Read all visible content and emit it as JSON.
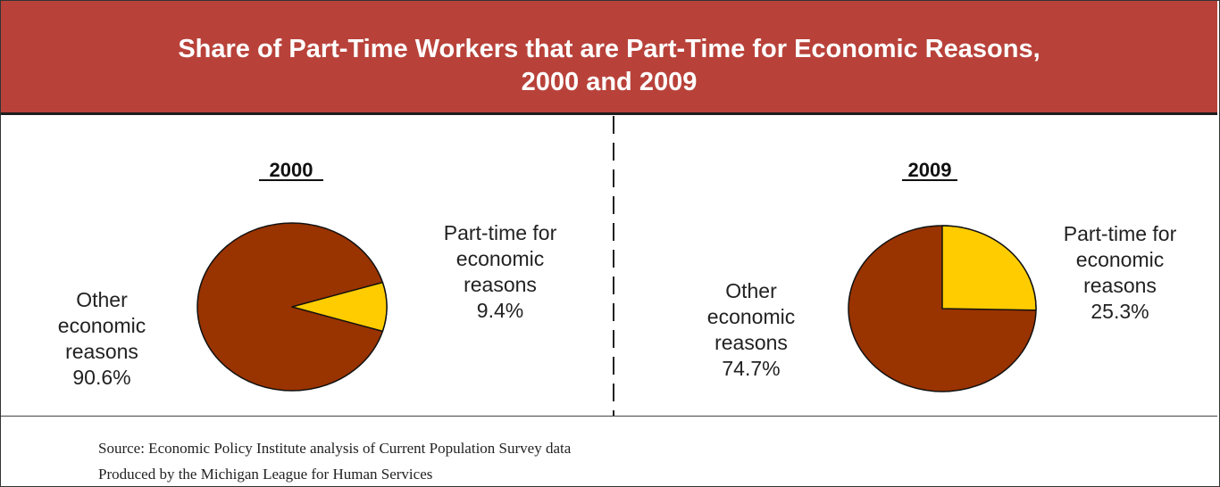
{
  "title_lines": [
    "Share of Part-Time Workers that are Part-Time for Economic Reasons,",
    "2000 and 2009"
  ],
  "colors": {
    "banner": "#b8423a",
    "other": "#993300",
    "economic": "#ffcc00"
  },
  "chart_data": [
    {
      "type": "pie",
      "title": "2000",
      "slices": [
        {
          "label_lines": [
            "Part-time for",
            "economic",
            "reasons"
          ],
          "value": 9.4,
          "value_label": "9.4%",
          "color": "#ffcc00"
        },
        {
          "label_lines": [
            "Other",
            "economic",
            "reasons"
          ],
          "value": 90.6,
          "value_label": "90.6%",
          "color": "#993300"
        }
      ]
    },
    {
      "type": "pie",
      "title": "2009",
      "slices": [
        {
          "label_lines": [
            "Part-time for",
            "economic",
            "reasons"
          ],
          "value": 25.3,
          "value_label": "25.3%",
          "color": "#ffcc00"
        },
        {
          "label_lines": [
            "Other",
            "economic",
            "reasons"
          ],
          "value": 74.7,
          "value_label": "74.7%",
          "color": "#993300"
        }
      ]
    }
  ],
  "footer": {
    "source": "Source: Economic Policy Institute analysis of Current Population Survey data",
    "produced_by": "Produced by the Michigan League for Human Services"
  }
}
